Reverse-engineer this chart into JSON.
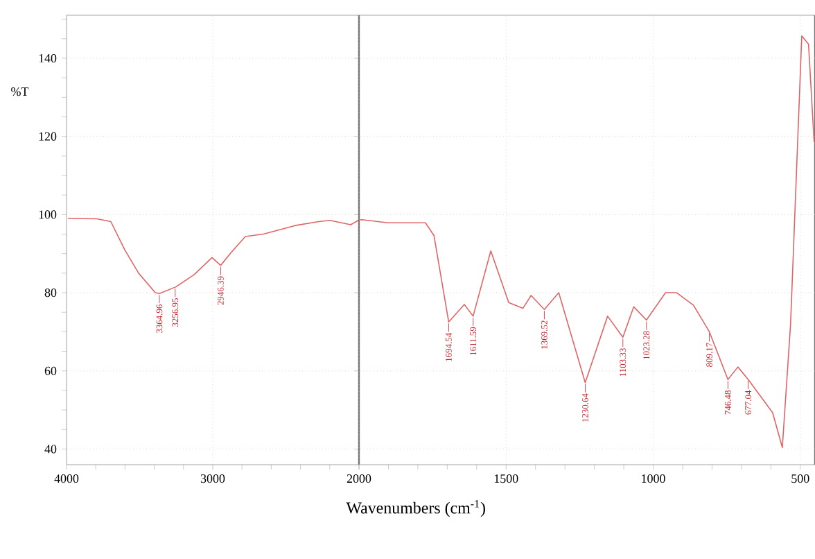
{
  "chart_data": [
    {
      "type": "line",
      "ylabel": "%T",
      "xlim": [
        4000,
        2000
      ],
      "ylim": [
        36,
        151
      ],
      "xticks": [
        4000,
        3000,
        {
          "value": 2000,
          "label": null
        },
        {
          "value": 3800,
          "label": null
        },
        {
          "value": 3600,
          "label": null
        },
        {
          "value": 3400,
          "label": null
        },
        {
          "value": 3200,
          "label": null
        },
        {
          "value": 2800,
          "label": null
        },
        {
          "value": 2600,
          "label": null
        },
        {
          "value": 2400,
          "label": null
        },
        {
          "value": 2200,
          "label": null
        }
      ],
      "yticks": [
        40,
        60,
        80,
        100,
        120,
        140,
        {
          "value": 45,
          "label": null
        },
        {
          "value": 50,
          "label": null
        },
        {
          "value": 55,
          "label": null
        },
        {
          "value": 65,
          "label": null
        },
        {
          "value": 70,
          "label": null
        },
        {
          "value": 75,
          "label": null
        },
        {
          "value": 85,
          "label": null
        },
        {
          "value": 90,
          "label": null
        },
        {
          "value": 95,
          "label": null
        },
        {
          "value": 105,
          "label": null
        },
        {
          "value": 110,
          "label": null
        },
        {
          "value": 115,
          "label": null
        },
        {
          "value": 125,
          "label": null
        },
        {
          "value": 130,
          "label": null
        },
        {
          "value": 135,
          "label": null
        },
        {
          "value": 145,
          "label": null
        },
        {
          "value": 150,
          "label": null
        }
      ],
      "grid": true,
      "marker": "none",
      "line_style": "solid",
      "series": [
        {
          "color": "#e06466",
          "x": [
            3990,
            3792,
            3697,
            3602,
            3507,
            3393,
            3365,
            3252,
            3128,
            3005,
            2946,
            2872,
            2777,
            2654,
            2436,
            2275,
            2199,
            2057,
            2000
          ],
          "values": [
            99,
            98.9,
            98.2,
            91,
            85,
            80,
            79.8,
            81.5,
            84.6,
            89,
            87,
            90.4,
            94.4,
            95,
            97.2,
            98.2,
            98.5,
            97.4,
            98.6
          ]
        }
      ],
      "annotations": [
        {
          "text": "3364.96",
          "x": 3365,
          "y": 79.8
        },
        {
          "text": "3256.95",
          "x": 3257,
          "y": 81.4
        },
        {
          "text": "2946.39",
          "x": 2946,
          "y": 87
        }
      ]
    },
    {
      "type": "line",
      "xlabel": "Wavenumbers (cm$^{-1}$)",
      "tick_labels": "x",
      "xlim": [
        2000,
        450
      ],
      "ylim": [
        36,
        151
      ],
      "xticks": [
        2000,
        1500,
        1000,
        500,
        {
          "value": 1900,
          "label": null
        },
        {
          "value": 1800,
          "label": null
        },
        {
          "value": 1700,
          "label": null
        },
        {
          "value": 1600,
          "label": null
        },
        {
          "value": 1400,
          "label": null
        },
        {
          "value": 1300,
          "label": null
        },
        {
          "value": 1200,
          "label": null
        },
        {
          "value": 1100,
          "label": null
        },
        {
          "value": 900,
          "label": null
        },
        {
          "value": 800,
          "label": null
        },
        {
          "value": 700,
          "label": null
        },
        {
          "value": 600,
          "label": null
        }
      ],
      "yticks": [
        40,
        60,
        80,
        100,
        120,
        140
      ],
      "grid": true,
      "marker": "none",
      "line_style": "solid",
      "series": [
        {
          "color": "#e06466",
          "x": [
            2000,
            1990,
            1901,
            1774,
            1745,
            1695,
            1642,
            1612,
            1552,
            1491,
            1443,
            1415,
            1370,
            1321,
            1231,
            1155,
            1103,
            1066,
            1023,
            958,
            920,
            863,
            809,
            746,
            712,
            677,
            594,
            561,
            533,
            495,
            472,
            453
          ],
          "values": [
            98.6,
            98.7,
            97.9,
            97.9,
            94.6,
            72.5,
            77,
            74,
            90.7,
            77.5,
            76,
            79.3,
            75.7,
            80,
            57,
            74,
            68.6,
            76.4,
            73,
            80,
            80,
            76.8,
            70,
            57.8,
            61,
            57.8,
            49.3,
            40.4,
            72,
            145.7,
            143.6,
            118.6
          ]
        }
      ],
      "annotations": [
        {
          "text": "1694.54",
          "x": 1695,
          "y": 72.5
        },
        {
          "text": "1611.59",
          "x": 1612,
          "y": 74
        },
        {
          "text": "1369.52",
          "x": 1370,
          "y": 75.7
        },
        {
          "text": "1230.64",
          "x": 1231,
          "y": 57
        },
        {
          "text": "1103.33",
          "x": 1103,
          "y": 68.6
        },
        {
          "text": "1023.28",
          "x": 1023,
          "y": 73
        },
        {
          "text": "809.17",
          "x": 809,
          "y": 70
        },
        {
          "text": "746.48",
          "x": 746,
          "y": 57.8
        },
        {
          "text": "677.04",
          "x": 677,
          "y": 57.8
        }
      ]
    }
  ]
}
